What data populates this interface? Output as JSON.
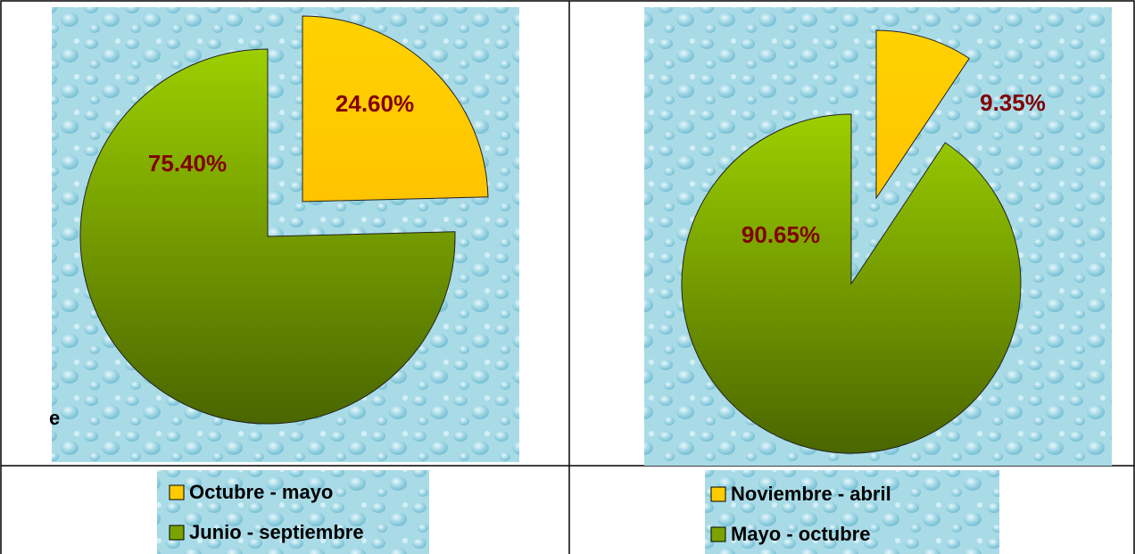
{
  "chart_data": [
    {
      "type": "pie",
      "categories": [
        "Octubre - mayo",
        "Junio - septiembre"
      ],
      "values": [
        24.6,
        75.4
      ],
      "value_labels": [
        "24.60%",
        "75.40%"
      ],
      "colors": [
        "#ffcc00",
        "#7aa300"
      ],
      "annotation": "e"
    },
    {
      "type": "pie",
      "categories": [
        "Noviembre - abril",
        "Mayo - octubre"
      ],
      "values": [
        9.35,
        90.65
      ],
      "value_labels": [
        "9.35%",
        "90.65%"
      ],
      "colors": [
        "#ffcc00",
        "#7aa300"
      ]
    }
  ]
}
